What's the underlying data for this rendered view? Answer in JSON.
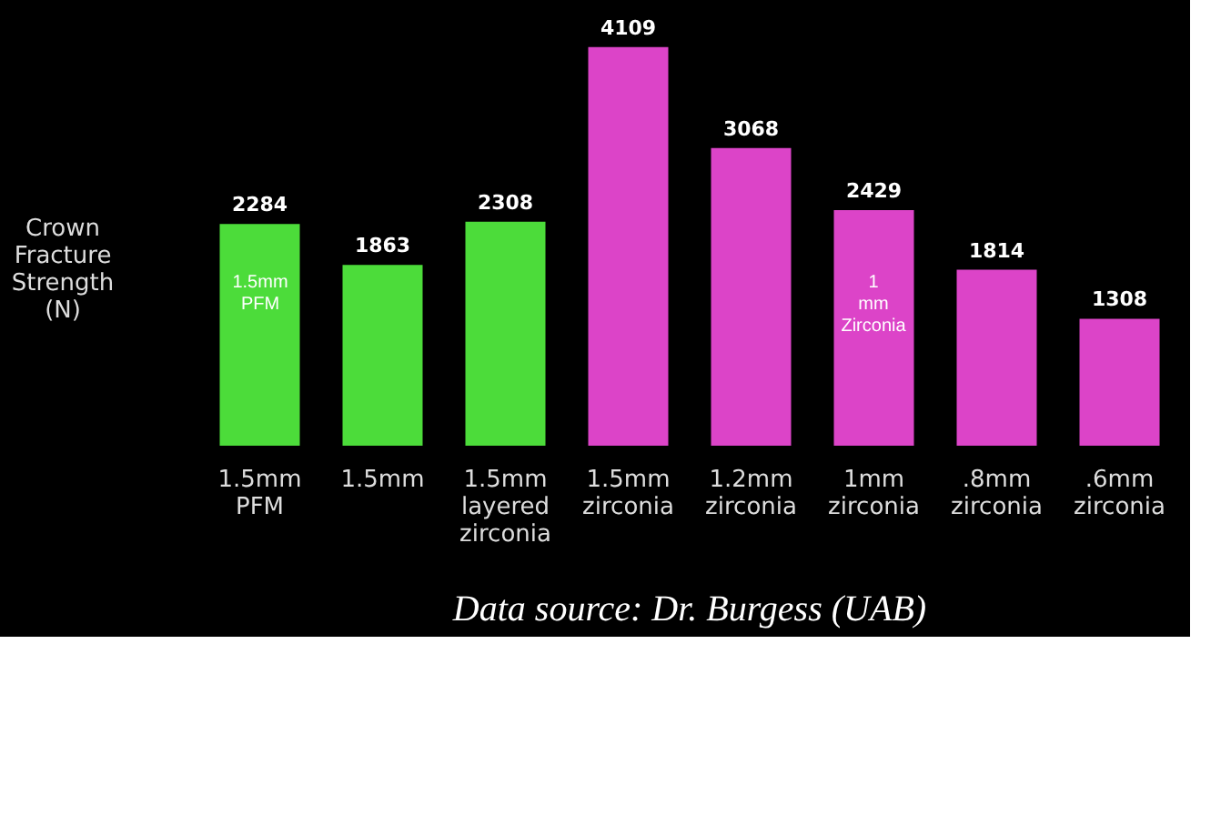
{
  "chart_data": {
    "type": "bar",
    "ylabel": "Crown Fracture Strength (N)",
    "categories": [
      "1.5mm PFM",
      "1.5mm",
      "1.5mm layered zirconia",
      "1.5mm zirconia",
      "1.2mm zirconia",
      "1mm zirconia",
      ".8mm zirconia",
      ".6mm zirconia"
    ],
    "values": [
      2284,
      1863,
      2308,
      4109,
      3068,
      2429,
      1814,
      1308
    ],
    "colors": [
      "#4cdc3a",
      "#4cdc3a",
      "#4cdc3a",
      "#dc44c8",
      "#dc44c8",
      "#dc44c8",
      "#dc44c8",
      "#dc44c8"
    ],
    "data_labels": true,
    "grid": false,
    "legend": false,
    "annotations": [
      "1.5mm PFM",
      "1 mm Zirconia",
      "Data source: Dr. Burgess (UAB)"
    ]
  }
}
